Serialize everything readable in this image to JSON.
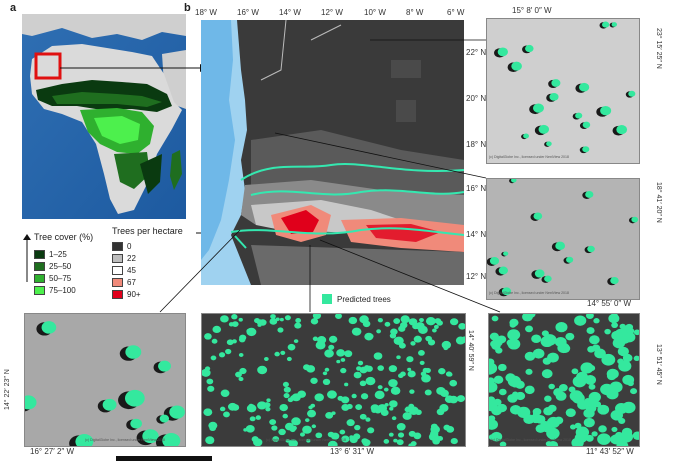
{
  "panels": {
    "a": "a",
    "b": "b"
  },
  "tree_cover_legend": {
    "title": "Tree cover (%)",
    "items": [
      {
        "label": "1–25",
        "color": "#0a3a10"
      },
      {
        "label": "25–50",
        "color": "#1f6e1f"
      },
      {
        "label": "50–75",
        "color": "#2fb02f"
      },
      {
        "label": "75–100",
        "color": "#4df04d"
      }
    ]
  },
  "density_legend": {
    "title": "Trees per hectare",
    "items": [
      {
        "label": "0",
        "color": "#333333"
      },
      {
        "label": "22",
        "color": "#bdbdbd"
      },
      {
        "label": "45",
        "color": "#ffffff"
      },
      {
        "label": "67",
        "color": "#f08a7a"
      },
      {
        "label": "90+",
        "color": "#e0001b"
      }
    ]
  },
  "predicted_label": "Predicted trees",
  "predicted_color": "#34e89e",
  "map": {
    "lon_ticks": [
      "18° W",
      "16° W",
      "14° W",
      "12° W",
      "10° W",
      "8° W",
      "6° W"
    ],
    "lat_ticks": [
      "22° N",
      "20° N",
      "18° N",
      "16° N",
      "14° N",
      "12° N"
    ]
  },
  "insets": {
    "top_right": {
      "lon": "15° 8′ 0″ W",
      "lat": "23° 15′ 25″ N",
      "credit": "(c) DigitalGlobe Inc., licensed under NextView 2018"
    },
    "mid_right": {
      "lon": "14° 55′ 0″ W",
      "lat": "18° 41′ 20″ N",
      "credit": "(c) DigitalGlobe Inc., licensed under NextView 2018"
    },
    "bottom_left": {
      "lon": "16° 27′ 2″ W",
      "lat": "14° 22′ 23″ N",
      "credit": "(c) DigitalGlobe Inc., licensed under NextView 2018"
    },
    "bottom_mid": {
      "lon": "13° 6′ 31″ W",
      "lat": "14° 40′ 59″ N",
      "credit": "(c) DigitalGlobe Inc., licensed under NextView 2018"
    },
    "bottom_right": {
      "lon": "11° 43′ 52″ W",
      "lat": "13° 51′ 45″ N",
      "credit": "(c) DigitalGlobe Inc., licensed under NextView 2018"
    }
  }
}
